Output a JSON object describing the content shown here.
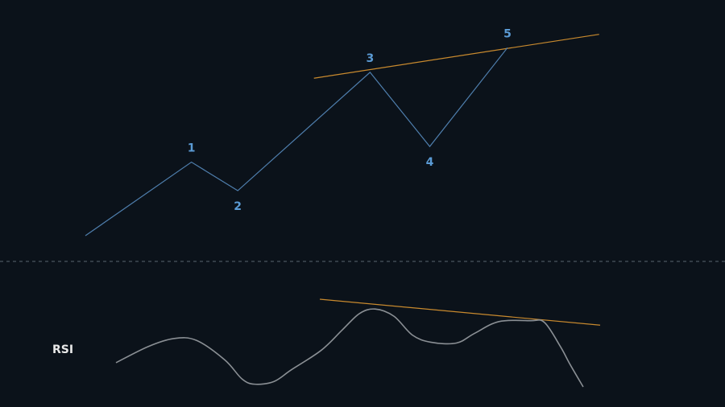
{
  "chart_data": [
    {
      "type": "line",
      "panel": "price",
      "title": "",
      "xlabel": "",
      "ylabel": "",
      "grid": false,
      "legend": "none",
      "colors": {
        "wave": "#4f7fae",
        "trendline": "#c98a2e",
        "label": "#5b9bd5",
        "background": "#0b121a"
      },
      "xlim": [
        0,
        100
      ],
      "ylim": [
        0,
        100
      ],
      "series": [
        {
          "points": [
            {
              "x": 0,
              "y": 0,
              "label": ""
            },
            {
              "x": 20.6,
              "y": 33.5,
              "label": "1"
            },
            {
              "x": 29.6,
              "y": 20.5,
              "label": "2"
            },
            {
              "x": 55.3,
              "y": 74.4,
              "label": "3"
            },
            {
              "x": 66.9,
              "y": 40.6,
              "label": "4"
            },
            {
              "x": 82.0,
              "y": 85.6,
              "label": "5"
            }
          ]
        }
      ],
      "trendline": {
        "start": {
          "x": 44.4,
          "y": 71.7
        },
        "end": {
          "x": 99.8,
          "y": 91.7
        }
      }
    },
    {
      "type": "line",
      "panel": "indicator",
      "indicator_label": "RSI",
      "title": "",
      "xlabel": "",
      "ylabel": "",
      "grid": false,
      "legend": "none",
      "colors": {
        "line": "#8a8f94",
        "trendline": "#c98a2e",
        "label": "#e8e8e8"
      },
      "xlim": [
        0,
        100
      ],
      "ylim": [
        0,
        100
      ],
      "separator": "dashed",
      "series": [
        {
          "points": [
            {
              "x": 0.0,
              "y": 27.6
            },
            {
              "x": 6.6,
              "y": 45.9
            },
            {
              "x": 11.9,
              "y": 55.1
            },
            {
              "x": 16.6,
              "y": 53.1
            },
            {
              "x": 22.5,
              "y": 30.6
            },
            {
              "x": 26.0,
              "y": 9.2
            },
            {
              "x": 28.6,
              "y": 3.1
            },
            {
              "x": 32.6,
              "y": 6.1
            },
            {
              "x": 36.2,
              "y": 19.4
            },
            {
              "x": 42.4,
              "y": 41.8
            },
            {
              "x": 46.8,
              "y": 65.3
            },
            {
              "x": 50.3,
              "y": 83.7
            },
            {
              "x": 53.5,
              "y": 88.8
            },
            {
              "x": 57.4,
              "y": 80.6
            },
            {
              "x": 61.2,
              "y": 59.2
            },
            {
              "x": 65.0,
              "y": 51.0
            },
            {
              "x": 70.3,
              "y": 50.0
            },
            {
              "x": 74.1,
              "y": 61.2
            },
            {
              "x": 79.1,
              "y": 74.5
            },
            {
              "x": 85.6,
              "y": 75.5
            },
            {
              "x": 88.5,
              "y": 73.5
            },
            {
              "x": 91.8,
              "y": 45.9
            },
            {
              "x": 93.8,
              "y": 25.5
            },
            {
              "x": 96.5,
              "y": 0.0
            }
          ]
        }
      ],
      "trendline": {
        "start": {
          "x": 42.1,
          "y": 100.0
        },
        "end": {
          "x": 100.0,
          "y": 70.4
        }
      }
    }
  ]
}
